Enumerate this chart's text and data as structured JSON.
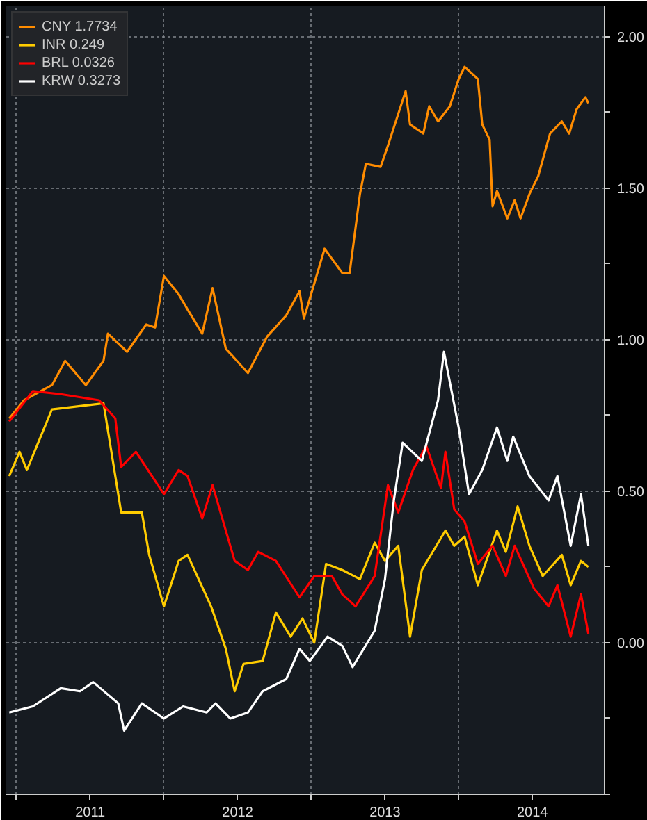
{
  "chart_data": {
    "type": "line",
    "legend": "top left",
    "grid": true,
    "line_style": "solid",
    "marker": "none",
    "xlim": [
      2010.93,
      2014.99
    ],
    "ylim": [
      -0.5,
      2.1
    ],
    "xticks": [
      {
        "value": 2011,
        "label": null
      },
      {
        "value": 2011.5,
        "label": "2011"
      },
      {
        "value": 2012,
        "label": null
      },
      {
        "value": 2012.5,
        "label": "2012"
      },
      {
        "value": 2013,
        "label": null
      },
      {
        "value": 2013.5,
        "label": "2013"
      },
      {
        "value": 2014,
        "label": null
      },
      {
        "value": 2014.5,
        "label": "2014"
      }
    ],
    "yticks": [
      {
        "value": 2.0,
        "label": "2.00"
      },
      {
        "value": 1.75,
        "label": null
      },
      {
        "value": 1.5,
        "label": "1.50"
      },
      {
        "value": 1.25,
        "label": null
      },
      {
        "value": 1.0,
        "label": "1.00"
      },
      {
        "value": 0.75,
        "label": null
      },
      {
        "value": 0.5,
        "label": "0.50"
      },
      {
        "value": 0.25,
        "label": null
      },
      {
        "value": 0.0,
        "label": "0.00"
      },
      {
        "value": -0.25,
        "label": null
      },
      {
        "value": -0.5,
        "label": null
      }
    ],
    "series": [
      {
        "name": "CNY 1.7734",
        "color": "#ff8c00",
        "x": [
          2010.95,
          2011.05,
          2011.24,
          2011.33,
          2011.47,
          2011.59,
          2011.62,
          2011.75,
          2011.88,
          2011.94,
          2012.0,
          2012.1,
          2012.16,
          2012.26,
          2012.33,
          2012.42,
          2012.57,
          2012.7,
          2012.83,
          2012.92,
          2012.95,
          2013.09,
          2013.21,
          2013.26,
          2013.33,
          2013.37,
          2013.47,
          2013.52,
          2013.64,
          2013.67,
          2013.76,
          2013.8,
          2013.86,
          2013.94,
          2014.0,
          2014.04,
          2014.13,
          2014.16,
          2014.21,
          2014.23,
          2014.26,
          2014.33,
          2014.38,
          2014.42,
          2014.48,
          2014.54,
          2014.62,
          2014.7,
          2014.75,
          2014.8,
          2014.86,
          2014.88
        ],
        "values": [
          0.74,
          0.8,
          0.85,
          0.93,
          0.85,
          0.93,
          1.02,
          0.96,
          1.05,
          1.04,
          1.21,
          1.15,
          1.1,
          1.02,
          1.17,
          0.97,
          0.89,
          1.01,
          1.08,
          1.16,
          1.07,
          1.3,
          1.22,
          1.22,
          1.48,
          1.58,
          1.57,
          1.64,
          1.82,
          1.71,
          1.68,
          1.77,
          1.72,
          1.77,
          1.86,
          1.9,
          1.86,
          1.71,
          1.66,
          1.44,
          1.49,
          1.4,
          1.46,
          1.4,
          1.48,
          1.54,
          1.68,
          1.72,
          1.68,
          1.76,
          1.8,
          1.78
        ]
      },
      {
        "name": "INR 0.249",
        "color": "#ffcc00",
        "x": [
          2010.95,
          2011.02,
          2011.07,
          2011.24,
          2011.59,
          2011.71,
          2011.85,
          2011.9,
          2012.0,
          2012.1,
          2012.16,
          2012.32,
          2012.42,
          2012.48,
          2012.54,
          2012.67,
          2012.76,
          2012.86,
          2012.94,
          2013.02,
          2013.1,
          2013.21,
          2013.33,
          2013.43,
          2013.5,
          2013.59,
          2013.67,
          2013.75,
          2013.91,
          2013.97,
          2014.04,
          2014.13,
          2014.26,
          2014.32,
          2014.4,
          2014.48,
          2014.57,
          2014.7,
          2014.76,
          2014.83,
          2014.88
        ],
        "values": [
          0.55,
          0.63,
          0.57,
          0.77,
          0.79,
          0.43,
          0.43,
          0.29,
          0.12,
          0.27,
          0.29,
          0.12,
          -0.02,
          -0.16,
          -0.07,
          -0.06,
          0.1,
          0.02,
          0.08,
          0.0,
          0.26,
          0.24,
          0.21,
          0.33,
          0.27,
          0.32,
          0.02,
          0.24,
          0.37,
          0.32,
          0.35,
          0.19,
          0.37,
          0.3,
          0.45,
          0.32,
          0.22,
          0.29,
          0.19,
          0.27,
          0.25
        ]
      },
      {
        "name": "BRL 0.0326",
        "color": "#ff0000",
        "x": [
          2010.95,
          2011.11,
          2011.3,
          2011.56,
          2011.67,
          2011.71,
          2011.81,
          2012.0,
          2012.1,
          2012.16,
          2012.26,
          2012.33,
          2012.48,
          2012.57,
          2012.64,
          2012.76,
          2012.92,
          2013.02,
          2013.14,
          2013.21,
          2013.3,
          2013.43,
          2013.52,
          2013.59,
          2013.69,
          2013.78,
          2013.88,
          2013.91,
          2013.97,
          2014.04,
          2014.13,
          2014.23,
          2014.32,
          2014.38,
          2014.51,
          2014.61,
          2014.67,
          2014.76,
          2014.83,
          2014.88
        ],
        "values": [
          0.73,
          0.83,
          0.82,
          0.8,
          0.74,
          0.58,
          0.63,
          0.49,
          0.57,
          0.55,
          0.41,
          0.52,
          0.27,
          0.24,
          0.3,
          0.27,
          0.15,
          0.22,
          0.22,
          0.16,
          0.12,
          0.22,
          0.52,
          0.43,
          0.57,
          0.65,
          0.51,
          0.63,
          0.44,
          0.4,
          0.26,
          0.32,
          0.22,
          0.32,
          0.18,
          0.12,
          0.19,
          0.02,
          0.16,
          0.03
        ]
      },
      {
        "name": "KRW 0.3273",
        "color": "#ffffff",
        "x": [
          2010.95,
          2011.11,
          2011.3,
          2011.43,
          2011.52,
          2011.69,
          2011.73,
          2011.85,
          2012.0,
          2012.13,
          2012.29,
          2012.35,
          2012.45,
          2012.57,
          2012.67,
          2012.83,
          2012.92,
          2012.99,
          2013.11,
          2013.21,
          2013.24,
          2013.28,
          2013.43,
          2013.5,
          2013.56,
          2013.62,
          2013.75,
          2013.86,
          2013.9,
          2014.0,
          2014.07,
          2014.16,
          2014.26,
          2014.33,
          2014.37,
          2014.48,
          2014.61,
          2014.67,
          2014.76,
          2014.83,
          2014.88
        ],
        "values": [
          -0.23,
          -0.21,
          -0.15,
          -0.16,
          -0.13,
          -0.2,
          -0.29,
          -0.2,
          -0.25,
          -0.21,
          -0.23,
          -0.2,
          -0.25,
          -0.23,
          -0.16,
          -0.12,
          -0.02,
          -0.06,
          0.02,
          -0.01,
          -0.04,
          -0.08,
          0.04,
          0.21,
          0.47,
          0.66,
          0.6,
          0.8,
          0.96,
          0.71,
          0.49,
          0.57,
          0.71,
          0.6,
          0.68,
          0.55,
          0.47,
          0.55,
          0.32,
          0.49,
          0.32
        ]
      }
    ]
  }
}
